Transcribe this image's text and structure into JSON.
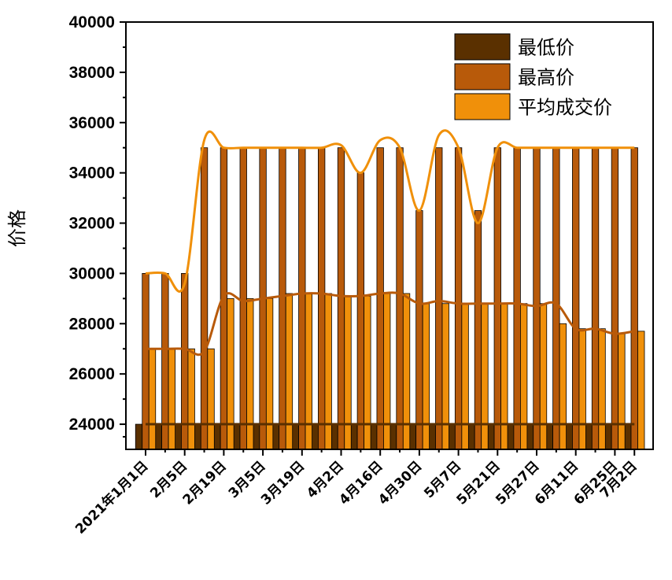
{
  "chart_data": {
    "type": "bar",
    "ylabel": "价格",
    "ylim": [
      23000,
      40000
    ],
    "yticks": [
      24000,
      26000,
      28000,
      30000,
      32000,
      34000,
      36000,
      38000,
      40000
    ],
    "x_tick_labels": [
      "2021年1月1日",
      "2月5日",
      "2月19日",
      "3月5日",
      "3月19日",
      "4月2日",
      "4月16日",
      "4月30日",
      "5月7日",
      "5月21日",
      "5月27日",
      "6月11日",
      "6月25日",
      "7月2日"
    ],
    "x_tick_positions": [
      0,
      2,
      4,
      6,
      8,
      10,
      12,
      14,
      16,
      18,
      20,
      22,
      24,
      25
    ],
    "series": [
      {
        "name": "最低价",
        "color": "#5a3000",
        "values": [
          24000,
          24000,
          24000,
          24000,
          24000,
          24000,
          24000,
          24000,
          24000,
          24000,
          24000,
          24000,
          24000,
          24000,
          24000,
          24000,
          24000,
          24000,
          24000,
          24000,
          24000,
          24000,
          24000,
          24000,
          24000,
          24000
        ]
      },
      {
        "name": "最高价",
        "color": "#b85a0a",
        "values": [
          30000,
          30000,
          30000,
          35000,
          35000,
          35000,
          35000,
          35000,
          35000,
          35000,
          35000,
          34000,
          35000,
          35000,
          32500,
          35000,
          35000,
          32500,
          35000,
          35000,
          35000,
          35000,
          35000,
          35000,
          35000,
          35000
        ]
      },
      {
        "name": "平均成交价",
        "color": "#f0900a",
        "values": [
          27000,
          27000,
          27000,
          27000,
          29000,
          29000,
          29000,
          29200,
          29200,
          29200,
          29100,
          29100,
          29200,
          29200,
          28800,
          28800,
          28800,
          28800,
          28800,
          28800,
          28800,
          28000,
          27800,
          27800,
          27600,
          27700
        ]
      }
    ],
    "curves": [
      {
        "name": "最高价",
        "color": "#f0900a",
        "values": [
          30000,
          30000,
          29600,
          35300,
          35000,
          35000,
          35000,
          35000,
          35000,
          35000,
          35100,
          34000,
          35300,
          35000,
          32500,
          35500,
          35000,
          32000,
          35000,
          35000,
          35000,
          35000,
          35000,
          35000,
          35000,
          35000
        ]
      },
      {
        "name": "平均成交价",
        "color": "#b85a0a",
        "values": [
          27000,
          27000,
          27000,
          26900,
          29100,
          28900,
          29000,
          29100,
          29200,
          29200,
          29100,
          29100,
          29200,
          29200,
          28800,
          28900,
          28800,
          28800,
          28800,
          28800,
          28700,
          28800,
          27800,
          27800,
          27600,
          27700
        ]
      },
      {
        "name": "最低价",
        "color": "#5a3000",
        "values": [
          24000,
          24000,
          24000,
          24000,
          24000,
          24000,
          24000,
          24000,
          24000,
          24000,
          24000,
          24000,
          24000,
          24000,
          24000,
          24000,
          24000,
          24000,
          24000,
          24000,
          24000,
          24000,
          24000,
          24000,
          24000,
          24000
        ]
      }
    ],
    "legend_position": "top-right"
  }
}
